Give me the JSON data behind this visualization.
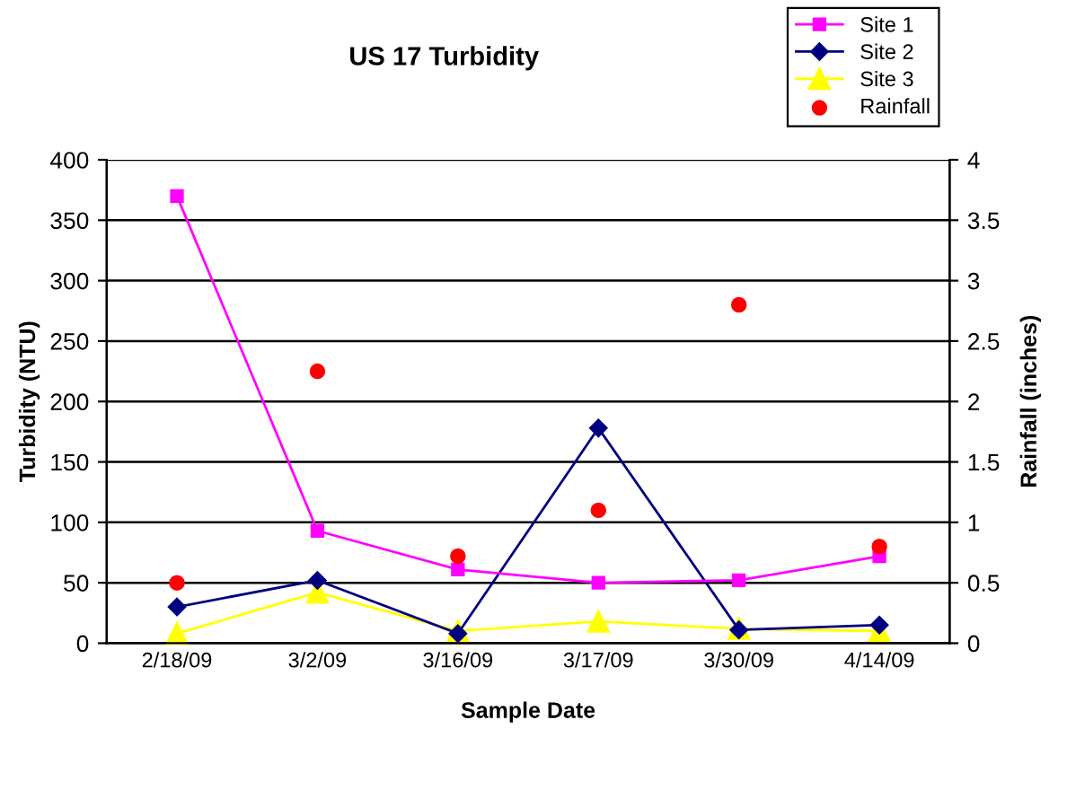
{
  "chart_data": {
    "type": "line",
    "title": "US 17 Turbidity",
    "xlabel": "Sample Date",
    "ylabel": "Turbidity (NTU)",
    "y2label": "Rainfall (inches)",
    "categories": [
      "2/18/09",
      "3/2/09",
      "3/16/09",
      "3/17/09",
      "3/30/09",
      "4/14/09"
    ],
    "series": [
      {
        "name": "Site 1",
        "color": "#ff00ff",
        "marker": "square",
        "values": [
          370,
          93,
          61,
          50,
          52,
          72
        ]
      },
      {
        "name": "Site 2",
        "color": "#000080",
        "marker": "diamond",
        "values": [
          30,
          52,
          8,
          178,
          11,
          15
        ]
      },
      {
        "name": "Site 3",
        "color": "#ffff00",
        "marker": "triangle",
        "values": [
          8,
          42,
          10,
          18,
          12,
          10
        ]
      },
      {
        "name": "Rainfall",
        "color": "#ff0000",
        "type": "scatter",
        "axis": "y2",
        "marker": "circle",
        "values": [
          0.5,
          2.25,
          0.72,
          1.1,
          2.8,
          0.8
        ]
      }
    ],
    "ylim": [
      0,
      400
    ],
    "yticks": [
      0,
      50,
      100,
      150,
      200,
      250,
      300,
      350,
      400
    ],
    "y2lim": [
      0,
      4
    ],
    "y2ticks": [
      0,
      0.5,
      1,
      1.5,
      2,
      2.5,
      3,
      3.5,
      4
    ],
    "grid": "y",
    "legend": "top right"
  }
}
